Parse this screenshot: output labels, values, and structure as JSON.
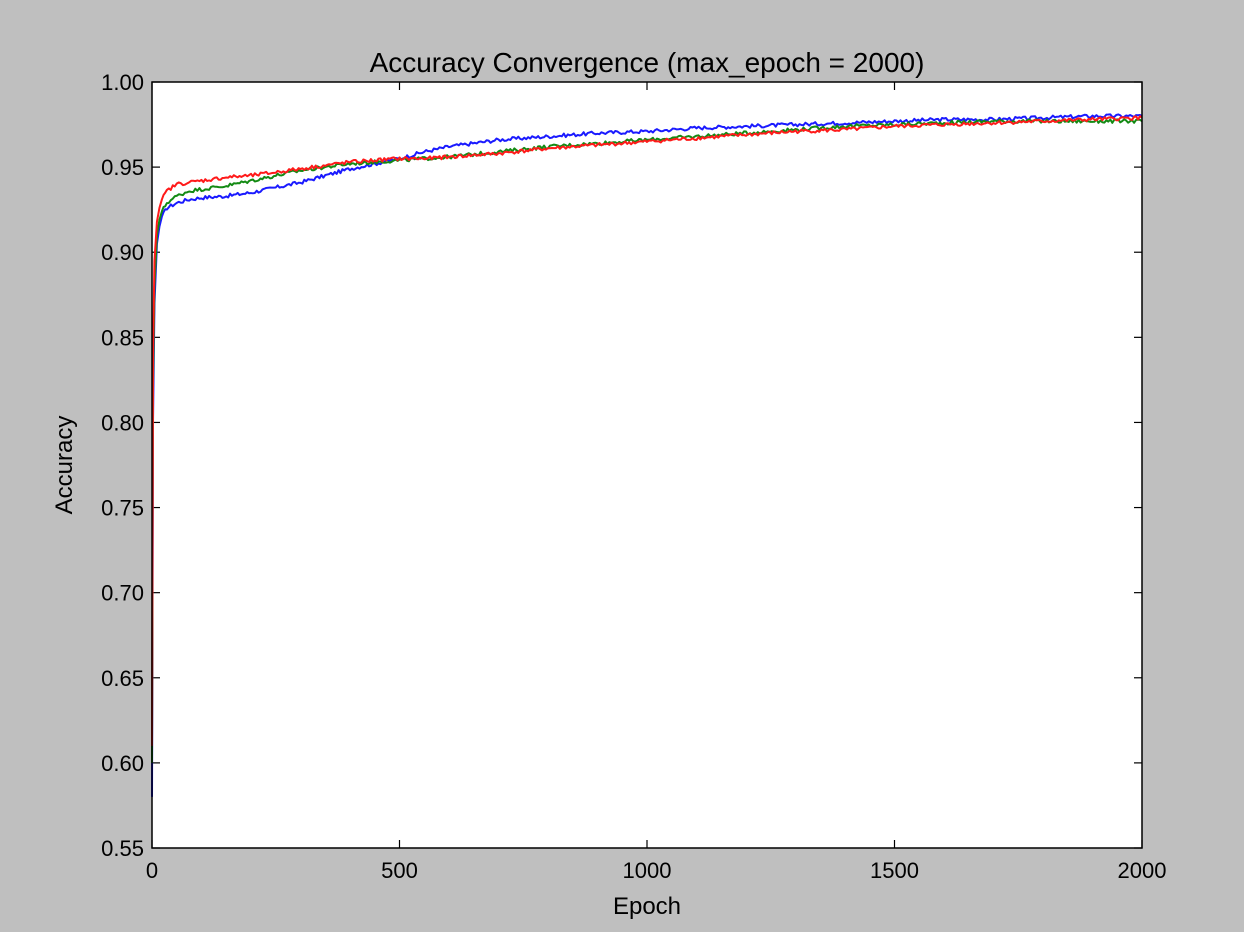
{
  "chart_data": {
    "type": "line",
    "title": "Accuracy Convergence (max_epoch = 2000)",
    "xlabel": "Epoch",
    "ylabel": "Accuracy",
    "xlim": [
      0,
      2000
    ],
    "ylim": [
      0.55,
      1.0
    ],
    "xticks": [
      0,
      500,
      1000,
      1500,
      2000
    ],
    "xtick_labels": [
      "0",
      "500",
      "1000",
      "1500",
      "2000"
    ],
    "yticks": [
      0.55,
      0.6,
      0.65,
      0.7,
      0.75,
      0.8,
      0.85,
      0.9,
      0.95,
      1.0
    ],
    "ytick_labels": [
      "0.55",
      "0.60",
      "0.65",
      "0.70",
      "0.75",
      "0.80",
      "0.85",
      "0.90",
      "0.95",
      "1.00"
    ],
    "grid": false,
    "legend": null,
    "series": [
      {
        "color": "#1a1aff",
        "x": [
          0,
          2,
          5,
          10,
          15,
          20,
          30,
          50,
          75,
          100,
          150,
          200,
          250,
          300,
          350,
          400,
          450,
          500,
          550,
          600,
          700,
          800,
          900,
          1000,
          1100,
          1200,
          1300,
          1400,
          1500,
          1600,
          1700,
          1800,
          1900,
          2000
        ],
        "y": [
          0.58,
          0.8,
          0.87,
          0.905,
          0.915,
          0.921,
          0.926,
          0.929,
          0.931,
          0.932,
          0.933,
          0.935,
          0.938,
          0.941,
          0.945,
          0.949,
          0.952,
          0.955,
          0.959,
          0.962,
          0.966,
          0.968,
          0.97,
          0.971,
          0.973,
          0.974,
          0.975,
          0.976,
          0.977,
          0.978,
          0.978,
          0.979,
          0.98,
          0.98
        ]
      },
      {
        "color": "#138a13",
        "x": [
          0,
          2,
          5,
          10,
          15,
          20,
          30,
          50,
          75,
          100,
          150,
          200,
          250,
          300,
          350,
          400,
          450,
          500,
          550,
          600,
          700,
          800,
          900,
          1000,
          1100,
          1200,
          1300,
          1400,
          1500,
          1600,
          1700,
          1800,
          1900,
          2000
        ],
        "y": [
          0.6,
          0.82,
          0.88,
          0.91,
          0.919,
          0.924,
          0.929,
          0.933,
          0.936,
          0.937,
          0.939,
          0.942,
          0.945,
          0.948,
          0.95,
          0.952,
          0.953,
          0.954,
          0.955,
          0.956,
          0.959,
          0.962,
          0.964,
          0.966,
          0.968,
          0.97,
          0.972,
          0.974,
          0.975,
          0.976,
          0.977,
          0.977,
          0.977,
          0.977
        ]
      },
      {
        "color": "#ff1a1a",
        "x": [
          0,
          2,
          5,
          10,
          15,
          20,
          30,
          50,
          75,
          100,
          150,
          200,
          250,
          300,
          350,
          400,
          450,
          500,
          550,
          600,
          700,
          800,
          900,
          1000,
          1100,
          1200,
          1300,
          1400,
          1500,
          1600,
          1700,
          1800,
          1900,
          2000
        ],
        "y": [
          0.61,
          0.84,
          0.895,
          0.918,
          0.926,
          0.931,
          0.936,
          0.94,
          0.941,
          0.942,
          0.944,
          0.945,
          0.947,
          0.949,
          0.951,
          0.953,
          0.954,
          0.955,
          0.955,
          0.956,
          0.958,
          0.961,
          0.963,
          0.965,
          0.967,
          0.969,
          0.971,
          0.972,
          0.974,
          0.975,
          0.976,
          0.977,
          0.978,
          0.979
        ]
      }
    ]
  }
}
